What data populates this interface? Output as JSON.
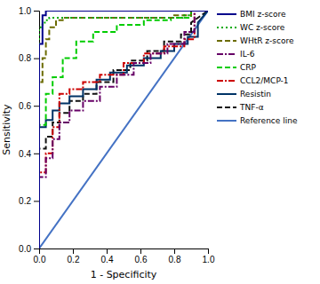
{
  "chart_data": {
    "type": "line",
    "x_label": "1 - Specificity",
    "y_label": "Sensitivity",
    "xlim": [
      0,
      1
    ],
    "ylim": [
      0,
      1
    ],
    "xticks": [
      {
        "value": 0,
        "label": "0.0"
      },
      0.2,
      0.4,
      0.6,
      0.8,
      {
        "value": 1,
        "label": "1.0"
      }
    ],
    "yticks": [
      {
        "value": 0,
        "label": "0.0"
      },
      0.2,
      0.4,
      0.6,
      0.8,
      {
        "value": 1,
        "label": "1.0"
      }
    ],
    "grid": false,
    "legend": "right",
    "series": [
      {
        "name": "BMI z-score",
        "color": "#00008B",
        "line_style": "solid",
        "x": [
          0,
          0,
          0.02,
          0.02,
          0.04,
          0.04,
          1
        ],
        "values": [
          0,
          0.86,
          0.86,
          0.98,
          0.98,
          1,
          1
        ]
      },
      {
        "name": "WC z-score",
        "color": "#00AA00",
        "line_style": "dotted",
        "x": [
          0,
          0,
          0.02,
          0.02,
          0.04,
          0.04,
          0.06,
          0.06,
          0.08,
          0.08,
          0.1,
          0.1,
          0.14,
          0.14,
          0.5,
          0.5,
          0.85,
          0.85,
          0.9,
          0.9,
          1
        ],
        "values": [
          0,
          0.93,
          0.93,
          0.95,
          0.95,
          0.96,
          0.96,
          0.97,
          0.97,
          0.97,
          0.97,
          0.97,
          0.97,
          0.97,
          0.97,
          0.97,
          0.97,
          0.98,
          0.98,
          1,
          1
        ]
      },
      {
        "name": "WHtR z-score",
        "color": "#6B6B00",
        "line_style": "dashed",
        "x": [
          0,
          0,
          0.02,
          0.02,
          0.04,
          0.04,
          0.06,
          0.06,
          0.1,
          0.1,
          0.14,
          0.14,
          0.5,
          0.5,
          0.8,
          0.8,
          0.9,
          0.9,
          1
        ],
        "values": [
          0,
          0.7,
          0.7,
          0.8,
          0.8,
          0.88,
          0.88,
          0.93,
          0.93,
          0.96,
          0.96,
          0.97,
          0.97,
          0.97,
          0.97,
          0.98,
          0.98,
          1,
          1
        ]
      },
      {
        "name": "IL-6",
        "color": "#660066",
        "line_style": "dashdot",
        "x": [
          0,
          0,
          0.04,
          0.04,
          0.08,
          0.08,
          0.12,
          0.12,
          0.18,
          0.18,
          0.26,
          0.26,
          0.36,
          0.36,
          0.46,
          0.46,
          0.56,
          0.56,
          0.66,
          0.66,
          0.76,
          0.76,
          0.86,
          0.86,
          0.92,
          0.92,
          1
        ],
        "values": [
          0,
          0.3,
          0.3,
          0.38,
          0.38,
          0.46,
          0.46,
          0.53,
          0.53,
          0.58,
          0.58,
          0.62,
          0.62,
          0.68,
          0.68,
          0.73,
          0.73,
          0.78,
          0.78,
          0.82,
          0.82,
          0.86,
          0.86,
          0.91,
          0.91,
          1,
          1
        ]
      },
      {
        "name": "CRP",
        "color": "#00CC00",
        "line_style": "dashed",
        "x": [
          0,
          0,
          0.04,
          0.04,
          0.08,
          0.08,
          0.14,
          0.14,
          0.22,
          0.22,
          0.32,
          0.32,
          0.46,
          0.46,
          0.62,
          0.62,
          0.78,
          0.78,
          0.9,
          0.9,
          1
        ],
        "values": [
          0,
          0.52,
          0.52,
          0.65,
          0.65,
          0.72,
          0.72,
          0.8,
          0.8,
          0.87,
          0.87,
          0.91,
          0.91,
          0.94,
          0.94,
          0.96,
          0.96,
          0.97,
          0.97,
          1,
          1
        ]
      },
      {
        "name": "CCL2/MCP-1",
        "color": "#CC0000",
        "line_style": "dashdot",
        "x": [
          0,
          0,
          0.04,
          0.04,
          0.08,
          0.08,
          0.12,
          0.12,
          0.18,
          0.18,
          0.26,
          0.26,
          0.36,
          0.36,
          0.5,
          0.5,
          0.62,
          0.62,
          0.74,
          0.74,
          0.86,
          0.86,
          0.92,
          0.92,
          1
        ],
        "values": [
          0,
          0.32,
          0.32,
          0.4,
          0.4,
          0.51,
          0.51,
          0.65,
          0.65,
          0.67,
          0.67,
          0.7,
          0.7,
          0.73,
          0.73,
          0.78,
          0.78,
          0.82,
          0.82,
          0.85,
          0.85,
          0.88,
          0.88,
          1,
          1
        ]
      },
      {
        "name": "Resistin",
        "color": "#003366",
        "line_style": "solid",
        "x": [
          0,
          0,
          0.04,
          0.04,
          0.08,
          0.08,
          0.12,
          0.12,
          0.18,
          0.18,
          0.26,
          0.26,
          0.34,
          0.34,
          0.42,
          0.42,
          0.52,
          0.52,
          0.62,
          0.62,
          0.72,
          0.72,
          0.8,
          0.8,
          0.88,
          0.88,
          0.94,
          0.94,
          1
        ],
        "values": [
          0,
          0.51,
          0.51,
          0.54,
          0.54,
          0.58,
          0.58,
          0.61,
          0.61,
          0.64,
          0.64,
          0.67,
          0.67,
          0.71,
          0.71,
          0.74,
          0.74,
          0.77,
          0.77,
          0.8,
          0.8,
          0.83,
          0.83,
          0.86,
          0.86,
          0.89,
          0.89,
          0.95,
          1
        ]
      },
      {
        "name": "TNF-α",
        "color": "#111111",
        "line_style": "dashed",
        "x": [
          0,
          0,
          0.04,
          0.04,
          0.08,
          0.08,
          0.12,
          0.12,
          0.18,
          0.18,
          0.26,
          0.26,
          0.34,
          0.34,
          0.44,
          0.44,
          0.54,
          0.54,
          0.64,
          0.64,
          0.74,
          0.74,
          0.84,
          0.84,
          0.9,
          0.9,
          1
        ],
        "values": [
          0,
          0.42,
          0.42,
          0.47,
          0.47,
          0.53,
          0.53,
          0.57,
          0.57,
          0.62,
          0.62,
          0.65,
          0.65,
          0.7,
          0.7,
          0.75,
          0.75,
          0.79,
          0.79,
          0.83,
          0.83,
          0.87,
          0.87,
          0.9,
          0.9,
          0.95,
          1
        ]
      },
      {
        "name": "Reference line",
        "color": "#4472C4",
        "line_style": "solid",
        "x": [
          0,
          1
        ],
        "values": [
          0,
          1
        ]
      }
    ]
  }
}
